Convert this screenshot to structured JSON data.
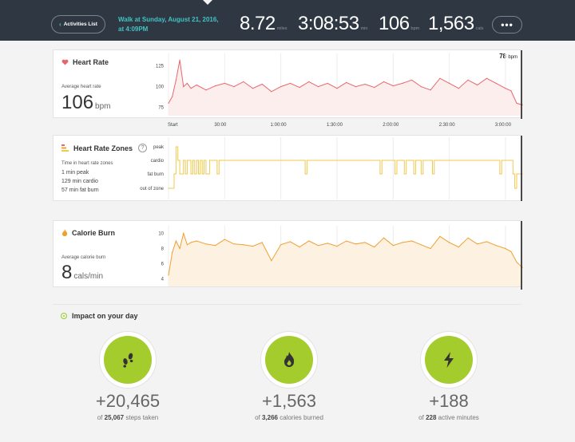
{
  "header": {
    "back_label": "Activities List",
    "title_line1": "Walk at Sunday, August 21, 2016,",
    "title_line2": "at 4:09PM",
    "distance": "8.72",
    "distance_unit": "miles",
    "duration": "3:08:53",
    "duration_unit": "min",
    "heart_rate": "106",
    "heart_rate_unit": "bpm",
    "calories": "1,563",
    "calories_unit": "cals",
    "more_label": "•••"
  },
  "heart_rate_card": {
    "title": "Heart Rate",
    "subtitle": "Average heart rate",
    "value": "106",
    "unit": "bpm",
    "current_value": "78",
    "current_unit": "bpm",
    "y_ticks": [
      "125",
      "100",
      "75"
    ],
    "color": "#e8666a"
  },
  "time_axis": {
    "labels": [
      "Start",
      "30:00",
      "1:00:00",
      "1:30:00",
      "2:00:00",
      "2:30:00",
      "3:00:00"
    ]
  },
  "zones_card": {
    "title": "Heart Rate Zones",
    "help": "?",
    "subtitle": "Time in heart rate zones",
    "lines": [
      "1 min peak",
      "129 min cardio",
      "57 min fat burn"
    ],
    "zone_labels": [
      "peak",
      "cardio",
      "fat burn",
      "out of zone"
    ],
    "color": "#f1c94a"
  },
  "calorie_card": {
    "title": "Calorie Burn",
    "subtitle": "Average calorie burn",
    "value": "8",
    "unit": "cals/min",
    "y_ticks": [
      "10",
      "8",
      "6",
      "4"
    ],
    "color": "#f0a030"
  },
  "impact": {
    "title": "Impact on your day",
    "items": [
      {
        "icon": "footsteps-icon",
        "value": "+20,465",
        "of": "of",
        "total": "25,067",
        "label": "steps taken"
      },
      {
        "icon": "flame-icon",
        "value": "+1,563",
        "of": "of",
        "total": "3,266",
        "label": "calories burned"
      },
      {
        "icon": "lightning-icon",
        "value": "+188",
        "of": "of",
        "total": "228",
        "label": "active minutes"
      }
    ],
    "accent": "#a4cc2d"
  },
  "chart_data": [
    {
      "type": "line",
      "title": "Heart Rate",
      "ylabel": "",
      "xlabel": "",
      "x_ticks": [
        "Start",
        "30:00",
        "1:00:00",
        "1:30:00",
        "2:00:00",
        "2:30:00",
        "3:00:00"
      ],
      "y_ticks": [
        75,
        100,
        125
      ],
      "ylim": [
        65,
        140
      ],
      "x": [
        0,
        2,
        4,
        6,
        8,
        10,
        12,
        15,
        20,
        25,
        30,
        35,
        40,
        45,
        50,
        55,
        60,
        65,
        70,
        75,
        80,
        85,
        90,
        95,
        100,
        105,
        110,
        115,
        120,
        125,
        130,
        135,
        140,
        145,
        150,
        155,
        160,
        165,
        170,
        175,
        180,
        183,
        186,
        189
      ],
      "values": [
        80,
        88,
        108,
        132,
        100,
        104,
        98,
        102,
        96,
        101,
        104,
        100,
        106,
        98,
        103,
        94,
        100,
        104,
        99,
        106,
        100,
        104,
        98,
        105,
        100,
        103,
        99,
        106,
        101,
        104,
        108,
        100,
        96,
        110,
        104,
        98,
        108,
        102,
        110,
        104,
        98,
        95,
        80,
        78
      ]
    },
    {
      "type": "line",
      "title": "Heart Rate Zones",
      "ylabel": "",
      "xlabel": "",
      "y_categories": [
        "out of zone",
        "fat burn",
        "cardio",
        "peak"
      ],
      "x": [
        0,
        3,
        4,
        5,
        6,
        8,
        9,
        10,
        12,
        13,
        14,
        15,
        16,
        17,
        18,
        19,
        20,
        22,
        26,
        27,
        28,
        72,
        73,
        74,
        112,
        113,
        114,
        120,
        121,
        122,
        125,
        126,
        127,
        130,
        131,
        132,
        134,
        135,
        136,
        140,
        141,
        142,
        176,
        177,
        178,
        183,
        184,
        185,
        186,
        189
      ],
      "values": [
        0,
        1,
        3,
        2,
        1,
        2,
        1,
        2,
        1,
        2,
        1,
        2,
        1,
        2,
        1,
        2,
        1,
        2,
        1,
        2,
        2,
        2,
        1,
        2,
        2,
        1,
        2,
        2,
        1,
        2,
        2,
        1,
        2,
        2,
        1,
        2,
        2,
        1,
        2,
        2,
        1,
        2,
        2,
        1,
        2,
        2,
        1,
        0,
        1,
        1
      ]
    },
    {
      "type": "line",
      "title": "Calorie Burn",
      "ylabel": "",
      "xlabel": "",
      "y_ticks": [
        4,
        6,
        8,
        10
      ],
      "ylim": [
        3,
        11
      ],
      "x": [
        0,
        2,
        4,
        6,
        8,
        10,
        12,
        15,
        20,
        25,
        30,
        35,
        40,
        45,
        50,
        55,
        60,
        65,
        70,
        75,
        80,
        85,
        90,
        95,
        100,
        105,
        110,
        115,
        120,
        125,
        130,
        135,
        140,
        145,
        150,
        155,
        160,
        165,
        170,
        175,
        180,
        183,
        186,
        189
      ],
      "values": [
        4.5,
        7.5,
        9,
        8,
        10,
        8.5,
        8.8,
        9,
        8.6,
        8.4,
        9.2,
        8.6,
        8.5,
        8.3,
        8.8,
        6.4,
        8.5,
        8.9,
        8.2,
        9,
        8.4,
        8.7,
        8.3,
        9,
        8.6,
        8.8,
        8.2,
        9.4,
        8.4,
        8.8,
        9,
        8.5,
        8,
        9.6,
        8.8,
        8.2,
        9.4,
        8.6,
        8.9,
        8.4,
        8,
        7.6,
        6.2,
        5.5
      ]
    }
  ]
}
